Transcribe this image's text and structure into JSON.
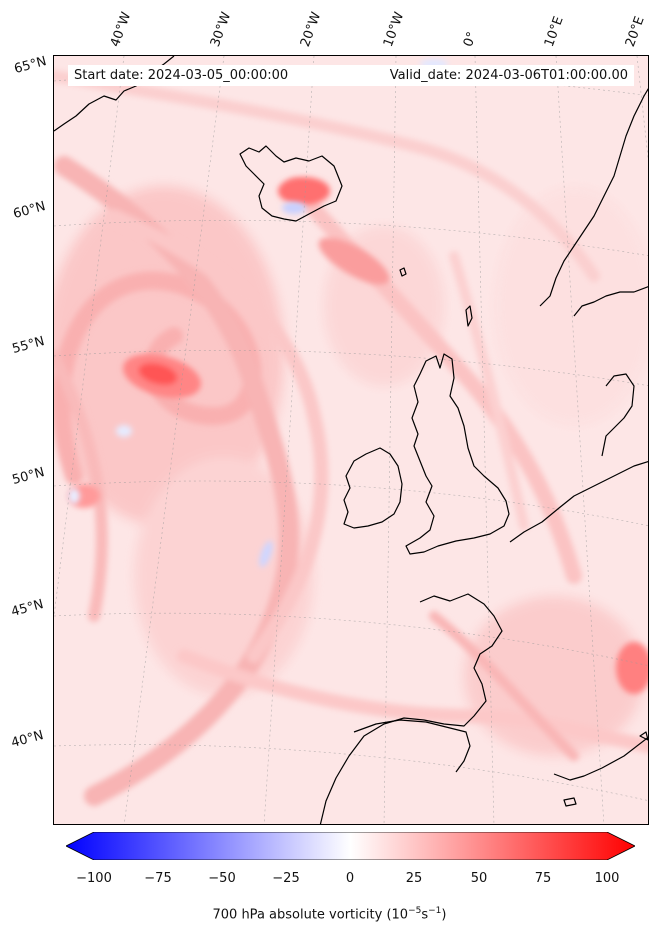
{
  "header": {
    "start_date": "Start date: 2024-03-05_00:00:00",
    "valid_date": "Valid_date: 2024-03-06T01:00:00.00"
  },
  "longitude_labels": [
    "40°W",
    "30°W",
    "20°W",
    "10°W",
    "0°",
    "10°E",
    "20°E"
  ],
  "latitude_labels": [
    "65°N",
    "60°N",
    "55°N",
    "50°N",
    "45°N",
    "40°N"
  ],
  "colorbar": {
    "ticks": [
      "−100",
      "−75",
      "−50",
      "−25",
      "0",
      "25",
      "50",
      "75",
      "100"
    ],
    "label_prefix": "700 hPa absolute vorticity (10",
    "label_exp1": "−5",
    "label_mid": "s",
    "label_exp2": "−1",
    "label_suffix": ")",
    "min": -100,
    "max": 100,
    "low_color": "#0000ff",
    "mid_color": "#ffffff",
    "high_color": "#ff0000"
  },
  "colors": {
    "background": "#fde6e6",
    "strong_positive": "#ff4d4d",
    "weak_negative": "#e8ecff",
    "coastline": "#000000"
  }
}
